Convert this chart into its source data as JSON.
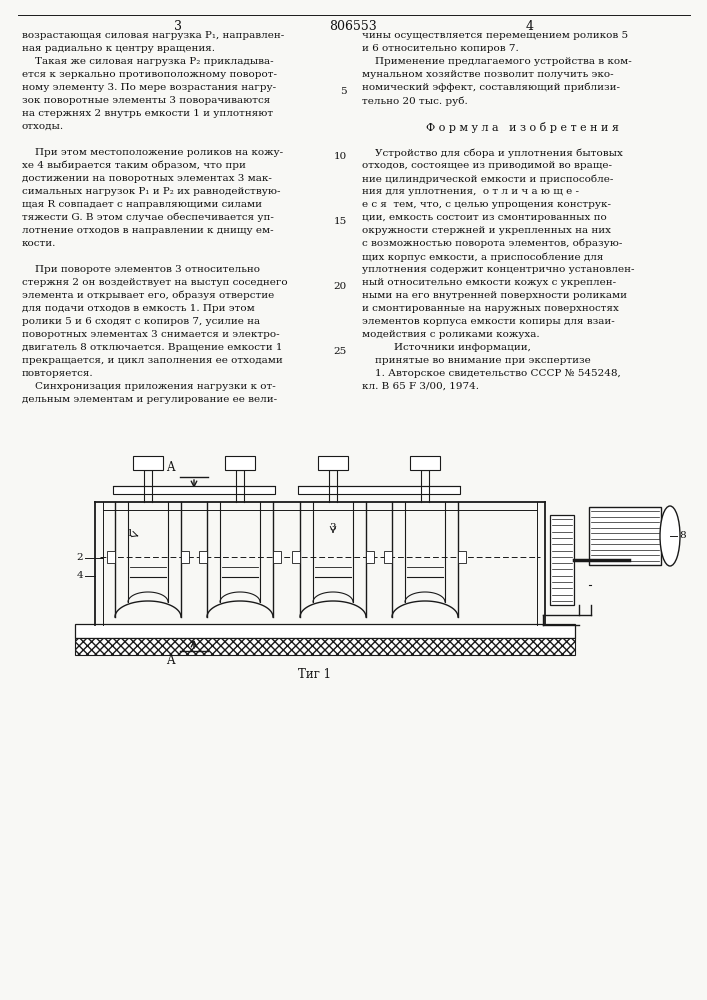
{
  "background_color": "#f8f8f5",
  "text_color": "#111111",
  "line_color": "#1a1a1a",
  "page_num_left": "3",
  "page_num_center": "806553",
  "page_num_right": "4",
  "left_col_lines": [
    "возрастающая силовая нагрузка P₁, направлен-",
    "ная радиально к центру вращения.",
    "    Такая же силовая нагрузка P₂ прикладыва-",
    "ется к зеркально противоположному поворот-",
    "ному элементу 3. По мере возрастания нагру-",
    "зок поворотные элементы 3 поворачиваются",
    "на стержнях 2 внутрь емкости 1 и уплотняют",
    "отходы.",
    " ",
    "    При этом местоположение роликов на кожу-",
    "хе 4 выбирается таким образом, что при",
    "достижении на поворотных элементах 3 мак-",
    "симальных нагрузок P₁ и P₂ их равнодействую-",
    "щая R совпадает с направляющими силами",
    "тяжести G. В этом случае обеспечивается уп-",
    "лотнение отходов в направлении к днищу ем-",
    "кости.",
    " ",
    "    При повороте элементов 3 относительно",
    "стержня 2 он воздействует на выступ соседнего",
    "элемента и открывает его, образуя отверстие",
    "для подачи отходов в емкость 1. При этом",
    "ролики 5 и 6 сходят с копиров 7, усилие на",
    "поворотных элементах 3 снимается и электро-",
    "двигатель 8 отключается. Вращение емкости 1",
    "прекращается, и цикл заполнения ее отходами",
    "повторяется.",
    "    Синхронизация приложения нагрузки к от-",
    "дельным элементам и регулирование ее вели-"
  ],
  "right_col_lines": [
    "чины осуществляется перемещением роликов 5",
    "и 6 относительно копиров 7.",
    "    Применение предлагаемого устройства в ком-",
    "мунальном хозяйстве позволит получить эко-",
    "номический эффект, составляющий приблизи-",
    "тельно 20 тыс. руб.",
    " ",
    "Ф о р м у л а   и з о б р е т е н и я",
    " ",
    "    Устройство для сбора и уплотнения бытовых",
    "отходов, состоящее из приводимой во враще-",
    "ние цилиндрической емкости и приспособле-",
    "ния для уплотнения,  о т л и ч а ю щ е -",
    "е с я  тем, что, с целью упрощения конструк-",
    "ции, емкость состоит из смонтированных по",
    "окружности стержней и укрепленных на них",
    "с возможностью поворота элементов, образую-",
    "щих корпус емкости, а приспособление для",
    "уплотнения содержит концентрично установлен-",
    "ный относительно емкости кожух с укреплен-",
    "ными на его внутренней поверхности роликами",
    "и смонтированные на наружных поверхностях",
    "элементов корпуса емкости копиры для взаи-",
    "модействия с роликами кожуха.",
    "        Источники информации,",
    "    принятые во внимание при экспертизе",
    "    1. Авторское свидетельство СССР № 545248,",
    "кл. В 65 F 3/00, 1974."
  ]
}
